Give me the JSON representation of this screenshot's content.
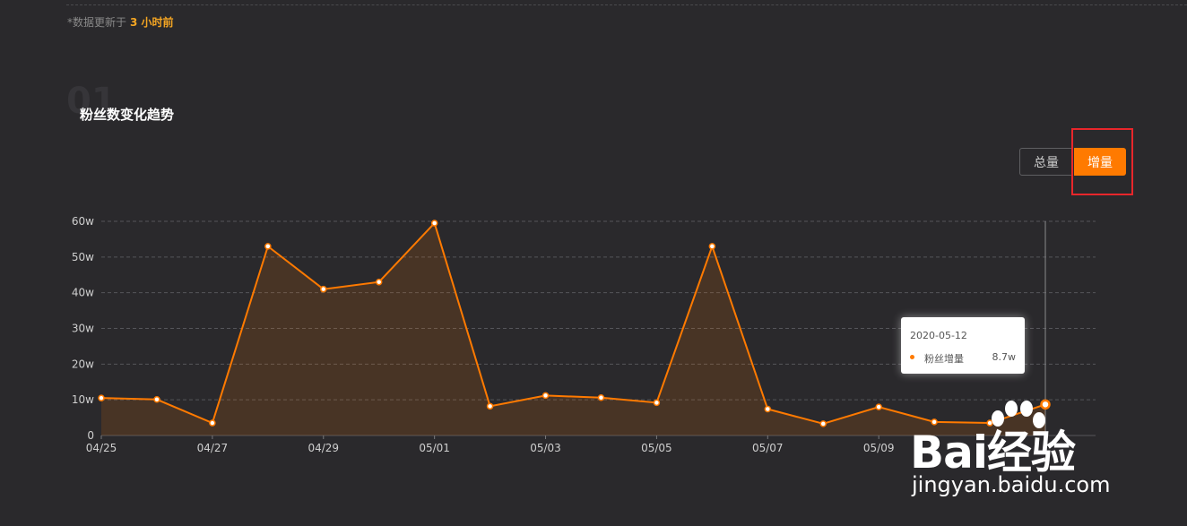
{
  "header": {
    "update_prefix": "*数据更新于",
    "update_time": "3 小时前"
  },
  "section": {
    "number": "01",
    "title": "粉丝数变化趋势"
  },
  "toggle": {
    "total_label": "总量",
    "increment_label": "增量",
    "selected": "增量",
    "accent_color": "#ff7a00"
  },
  "chart_data": {
    "type": "area",
    "x": [
      "04/25",
      "04/26",
      "04/27",
      "04/28",
      "04/29",
      "04/30",
      "05/01",
      "05/02",
      "05/03",
      "05/04",
      "05/05",
      "05/06",
      "05/07",
      "05/08",
      "05/09",
      "05/10",
      "05/11",
      "05/12"
    ],
    "x_tick_labels": [
      "04/25",
      "04/27",
      "04/29",
      "05/01",
      "05/03",
      "05/05",
      "05/07",
      "05/09"
    ],
    "y_tick_labels": [
      "0",
      "10w",
      "20w",
      "30w",
      "40w",
      "50w",
      "60w"
    ],
    "series": [
      {
        "name": "粉丝增量",
        "unit": "w",
        "color": "#ff7a00",
        "values": [
          10.5,
          10.1,
          3.5,
          53.0,
          41.0,
          43.0,
          59.5,
          8.2,
          11.2,
          10.6,
          9.2,
          53.0,
          7.4,
          3.3,
          8.0,
          3.8,
          3.5,
          8.7
        ]
      }
    ],
    "ylim": [
      0,
      60
    ],
    "grid": "dashed-horizontal",
    "tooltip": {
      "date": "2020-05-12",
      "label": "粉丝增量",
      "value": "8.7w"
    }
  },
  "watermark": {
    "brand": "Bai经验",
    "url": "jingyan.baidu.com"
  }
}
